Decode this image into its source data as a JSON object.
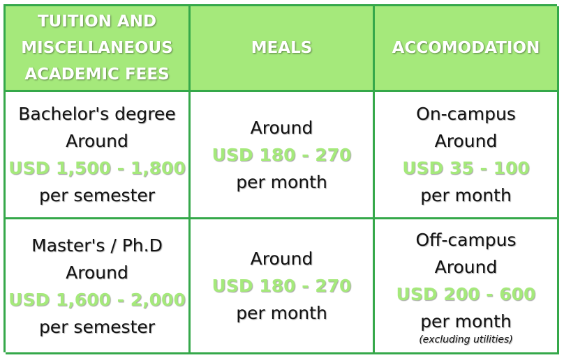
{
  "colors": {
    "header_bg": "#a5e97b",
    "border": "#35a84a",
    "price_text": "#a5e97b"
  },
  "headers": {
    "tuition": [
      "TUITION AND",
      "MISCELLANEOUS",
      "ACADEMIC FEES"
    ],
    "meals": "MEALS",
    "accommodation": "ACCOMODATION"
  },
  "rows": [
    {
      "tuition": {
        "level": "Bachelor's degree",
        "prefix": "Around",
        "price": "USD 1,500 - 1,800",
        "period": "per semester"
      },
      "meals": {
        "prefix": "Around",
        "price": "USD 180 - 270",
        "period": "per month"
      },
      "accommodation": {
        "type": "On-campus",
        "prefix": "Around",
        "price": "USD 35 - 100",
        "period": "per month"
      }
    },
    {
      "tuition": {
        "level": "Master's / Ph.D",
        "prefix": "Around",
        "price": "USD 1,600 - 2,000",
        "period": "per semester"
      },
      "meals": {
        "prefix": "Around",
        "price": "USD 180 - 270",
        "period": "per month"
      },
      "accommodation": {
        "type": "Off-campus",
        "prefix": "Around",
        "price": "USD 200 - 600",
        "period": "per month",
        "note": "(excluding utilities)"
      }
    }
  ]
}
